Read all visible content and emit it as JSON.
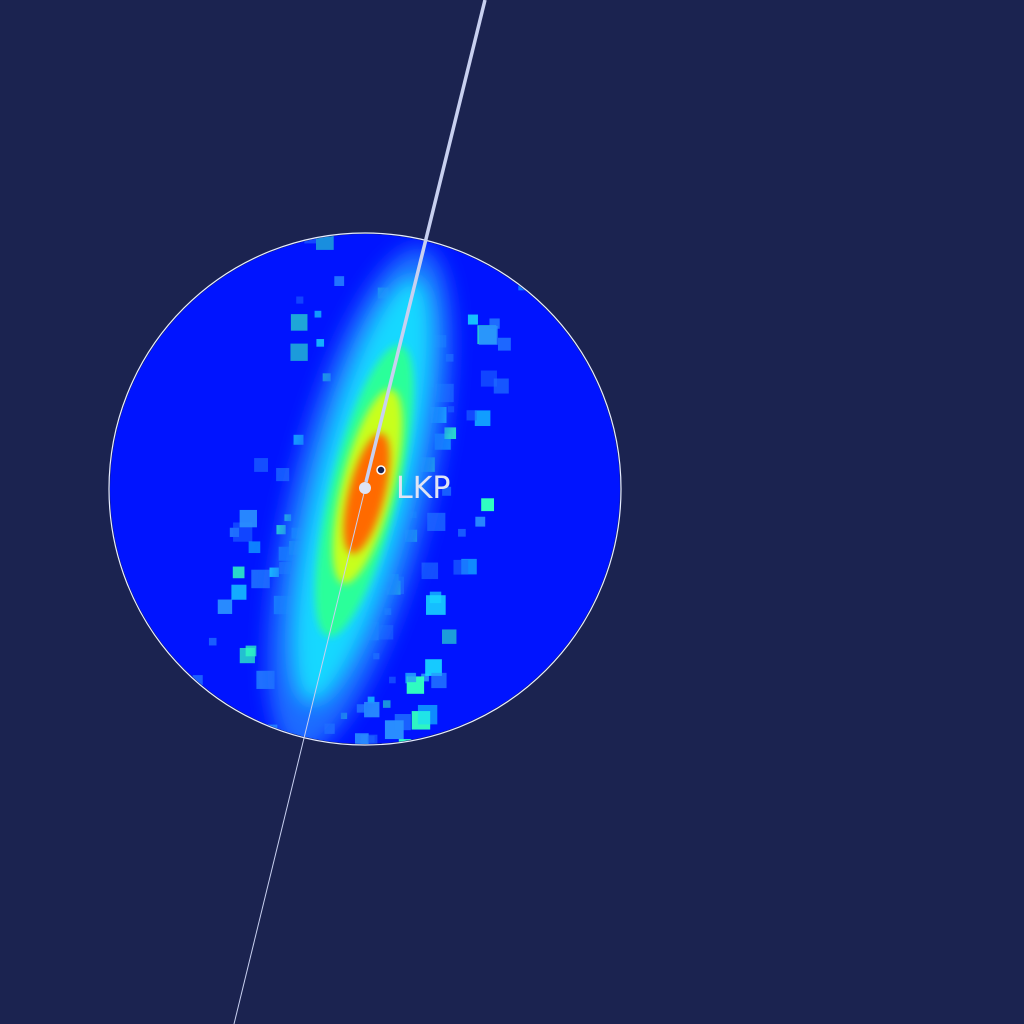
{
  "map": {
    "marker": {
      "label": "LKP"
    }
  }
}
